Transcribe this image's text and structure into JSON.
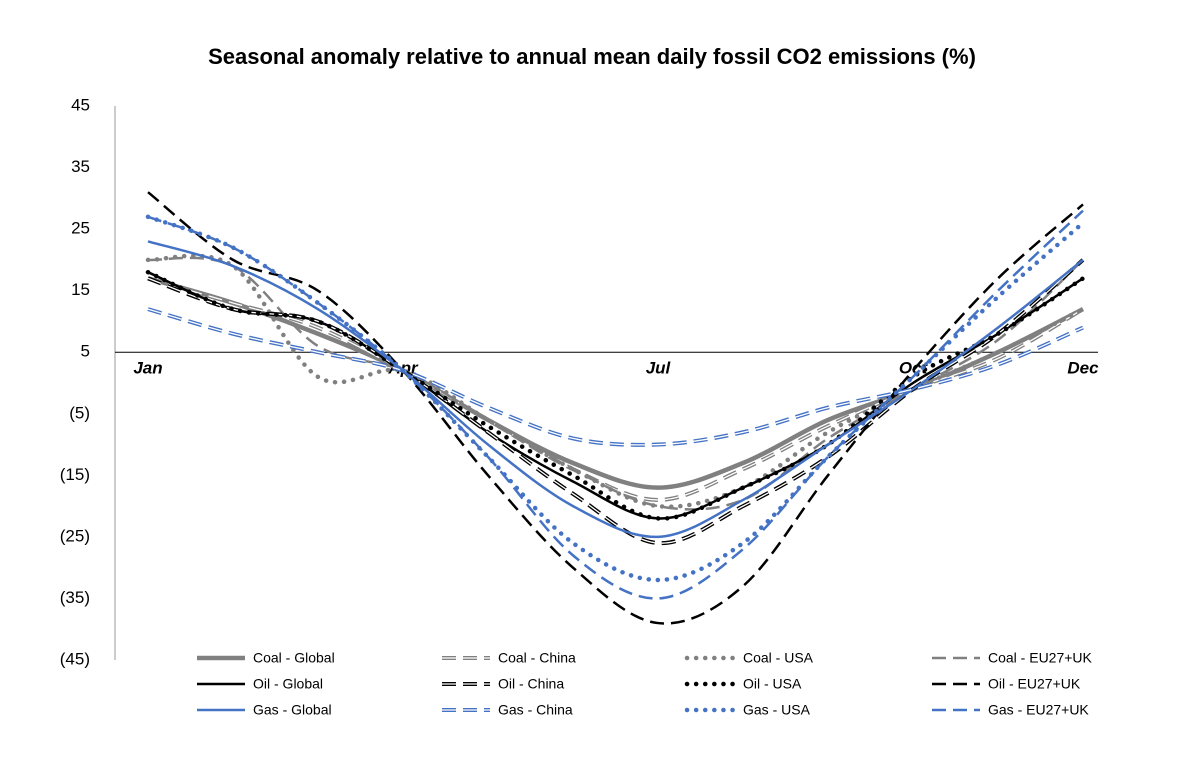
{
  "chart_data": {
    "type": "line",
    "title": "Seasonal anomaly relative to annual mean daily fossil CO2 emissions (%)",
    "categories": [
      "Jan",
      null,
      null,
      "Apr",
      null,
      null,
      "Jul",
      null,
      null,
      "Oct",
      null,
      "Dec"
    ],
    "ylim": [
      -45,
      45
    ],
    "yticks": [
      {
        "value": -45,
        "label": "(45)"
      },
      {
        "value": -35,
        "label": "(35)"
      },
      {
        "value": -25,
        "label": "(25)"
      },
      {
        "value": -15,
        "label": "(15)"
      },
      {
        "value": -5,
        "label": "(5)"
      },
      5,
      15,
      25,
      35,
      45
    ],
    "x_axis_crosses": 5,
    "grid": false,
    "legend": "bottom",
    "series": [
      {
        "name": "Coal - Global",
        "color": "#808080",
        "style": "thick",
        "values": [
          17,
          13,
          8,
          2,
          -6,
          -13,
          -17,
          -13,
          -6,
          -1,
          5,
          12
        ]
      },
      {
        "name": "Coal - China",
        "color": "#808080",
        "style": "double",
        "values": [
          17,
          13,
          9,
          2,
          -6,
          -14,
          -19,
          -14,
          -7,
          -1,
          4,
          12
        ]
      },
      {
        "name": "Coal - USA",
        "color": "#808080",
        "style": "dotted",
        "values": [
          20,
          19,
          1,
          2,
          -6,
          -14,
          -20,
          -17,
          -8,
          -1,
          5,
          12
        ]
      },
      {
        "name": "Coal - EU27+UK",
        "color": "#808080",
        "style": "dashed",
        "values": [
          20,
          19,
          6,
          2,
          -6,
          -14,
          -20,
          -19,
          -9,
          -1,
          7,
          20
        ]
      },
      {
        "name": "Oil - Global",
        "color": "#000000",
        "style": "solid",
        "values": [
          18,
          12,
          10,
          2,
          -8,
          -16,
          -22,
          -17,
          -10,
          0,
          8,
          17
        ]
      },
      {
        "name": "Oil - China",
        "color": "#000000",
        "style": "double",
        "values": [
          17,
          12,
          10,
          2,
          -8,
          -18,
          -26,
          -20,
          -12,
          -1,
          8,
          20
        ]
      },
      {
        "name": "Oil  - USA",
        "color": "#000000",
        "style": "dotted",
        "values": [
          18,
          12,
          10,
          2,
          -7,
          -15,
          -22,
          -17,
          -10,
          1,
          8,
          17
        ]
      },
      {
        "name": "Oil - EU27+UK",
        "color": "#000000",
        "style": "dashed",
        "values": [
          31,
          20,
          15,
          2,
          -15,
          -30,
          -39,
          -33,
          -15,
          2,
          17,
          29
        ]
      },
      {
        "name": "Gas - Global",
        "color": "#4472c4",
        "style": "solid",
        "values": [
          23,
          19,
          12,
          2,
          -10,
          -20,
          -25,
          -19,
          -10,
          -1,
          9,
          20
        ]
      },
      {
        "name": "Gas - China",
        "color": "#4472c4",
        "style": "double",
        "values": [
          12,
          8,
          5,
          2,
          -4,
          -9,
          -10,
          -8,
          -4,
          -1,
          3,
          9
        ]
      },
      {
        "name": "Gas - USA",
        "color": "#4472c4",
        "style": "dotted",
        "values": [
          27,
          22,
          13,
          2,
          -12,
          -26,
          -32,
          -26,
          -12,
          1,
          14,
          26
        ]
      },
      {
        "name": "Gas - EU27+UK",
        "color": "#4472c4",
        "style": "dashed",
        "values": [
          27,
          22,
          13,
          2,
          -12,
          -28,
          -35,
          -27,
          -12,
          1,
          15,
          28
        ]
      }
    ]
  }
}
